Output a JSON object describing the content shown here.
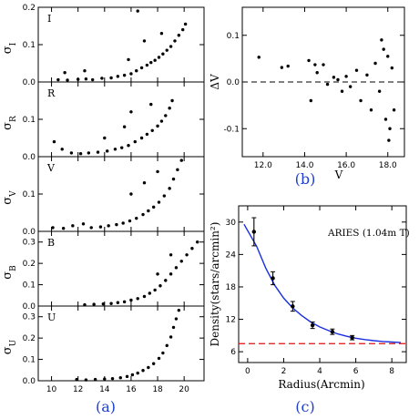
{
  "captions": {
    "a": "(a)",
    "b": "(b)",
    "c": "(c)"
  },
  "chart_data": [
    {
      "type": "scatter",
      "panel": "(a)",
      "xlabel": "",
      "xlim": [
        9,
        21.5
      ],
      "xticks": [
        10,
        12,
        14,
        16,
        18,
        20
      ],
      "series": [
        {
          "band": "I",
          "ylabel": "σ_I",
          "ylim": [
            0,
            0.2
          ],
          "yticks": [
            0,
            0.1,
            0.2
          ],
          "yticklabels": [
            "0.0",
            "0.1",
            "0.2"
          ],
          "points": [
            [
              10.5,
              0.006
            ],
            [
              11.2,
              0.005
            ],
            [
              12.0,
              0.007
            ],
            [
              12.6,
              0.008
            ],
            [
              13.1,
              0.006
            ],
            [
              13.8,
              0.01
            ],
            [
              14.5,
              0.011
            ],
            [
              15.0,
              0.015
            ],
            [
              15.5,
              0.018
            ],
            [
              16.0,
              0.022
            ],
            [
              16.4,
              0.03
            ],
            [
              16.8,
              0.038
            ],
            [
              17.2,
              0.045
            ],
            [
              17.5,
              0.052
            ],
            [
              17.8,
              0.058
            ],
            [
              18.1,
              0.066
            ],
            [
              18.4,
              0.075
            ],
            [
              18.7,
              0.085
            ],
            [
              19.0,
              0.095
            ],
            [
              19.3,
              0.11
            ],
            [
              19.6,
              0.125
            ],
            [
              19.9,
              0.14
            ],
            [
              20.1,
              0.155
            ],
            [
              15.8,
              0.06
            ],
            [
              16.5,
              0.19
            ],
            [
              17.0,
              0.11
            ],
            [
              18.3,
              0.13
            ],
            [
              12.5,
              0.03
            ],
            [
              11.0,
              0.025
            ]
          ]
        },
        {
          "band": "R",
          "ylabel": "σ_R",
          "ylim": [
            0,
            0.2
          ],
          "yticks": [
            0,
            0.1
          ],
          "yticklabels": [
            "0.0",
            "0.1"
          ],
          "points": [
            [
              10.2,
              0.04
            ],
            [
              10.8,
              0.02
            ],
            [
              11.5,
              0.01
            ],
            [
              12.2,
              0.008
            ],
            [
              12.8,
              0.01
            ],
            [
              13.5,
              0.012
            ],
            [
              14.2,
              0.015
            ],
            [
              14.8,
              0.02
            ],
            [
              15.3,
              0.024
            ],
            [
              15.8,
              0.03
            ],
            [
              16.3,
              0.04
            ],
            [
              16.8,
              0.05
            ],
            [
              17.2,
              0.06
            ],
            [
              17.6,
              0.07
            ],
            [
              18.0,
              0.082
            ],
            [
              18.3,
              0.095
            ],
            [
              18.6,
              0.11
            ],
            [
              18.9,
              0.13
            ],
            [
              19.1,
              0.15
            ],
            [
              15.5,
              0.08
            ],
            [
              16.0,
              0.12
            ],
            [
              17.5,
              0.14
            ],
            [
              14.0,
              0.05
            ]
          ]
        },
        {
          "band": "V",
          "ylabel": "σ_V",
          "ylim": [
            0,
            0.2
          ],
          "yticks": [
            0,
            0.1
          ],
          "yticklabels": [
            "0.0",
            "0.1"
          ],
          "points": [
            [
              10.1,
              0.01
            ],
            [
              10.9,
              0.008
            ],
            [
              11.6,
              0.015
            ],
            [
              12.4,
              0.02
            ],
            [
              13.0,
              0.01
            ],
            [
              13.7,
              0.012
            ],
            [
              14.3,
              0.015
            ],
            [
              14.9,
              0.018
            ],
            [
              15.4,
              0.022
            ],
            [
              15.9,
              0.028
            ],
            [
              16.4,
              0.035
            ],
            [
              16.9,
              0.045
            ],
            [
              17.3,
              0.055
            ],
            [
              17.7,
              0.065
            ],
            [
              18.1,
              0.078
            ],
            [
              18.5,
              0.095
            ],
            [
              18.9,
              0.115
            ],
            [
              19.2,
              0.14
            ],
            [
              19.5,
              0.165
            ],
            [
              19.8,
              0.19
            ],
            [
              16.0,
              0.1
            ],
            [
              17.0,
              0.13
            ],
            [
              18.0,
              0.16
            ]
          ]
        },
        {
          "band": "B",
          "ylabel": "σ_B",
          "ylim": [
            0,
            0.35
          ],
          "yticks": [
            0,
            0.1,
            0.2,
            0.3
          ],
          "yticklabels": [
            "0.0",
            "0.1",
            "0.2",
            "0.3"
          ],
          "points": [
            [
              12.5,
              0.006
            ],
            [
              13.2,
              0.008
            ],
            [
              13.9,
              0.01
            ],
            [
              14.5,
              0.012
            ],
            [
              15.0,
              0.016
            ],
            [
              15.5,
              0.02
            ],
            [
              16.0,
              0.028
            ],
            [
              16.5,
              0.035
            ],
            [
              17.0,
              0.045
            ],
            [
              17.4,
              0.06
            ],
            [
              17.8,
              0.075
            ],
            [
              18.2,
              0.095
            ],
            [
              18.6,
              0.12
            ],
            [
              19.0,
              0.15
            ],
            [
              19.4,
              0.18
            ],
            [
              19.8,
              0.21
            ],
            [
              20.2,
              0.24
            ],
            [
              20.6,
              0.27
            ],
            [
              21.0,
              0.3
            ],
            [
              18.0,
              0.15
            ],
            [
              19.0,
              0.24
            ]
          ]
        },
        {
          "band": "U",
          "ylabel": "σ_U",
          "ylim": [
            0,
            0.35
          ],
          "yticks": [
            0,
            0.1,
            0.2,
            0.3
          ],
          "yticklabels": [
            "0.0",
            "0.1",
            "0.2",
            "0.3"
          ],
          "points": [
            [
              11.9,
              0.006
            ],
            [
              12.6,
              0.004
            ],
            [
              13.3,
              0.006
            ],
            [
              14.0,
              0.008
            ],
            [
              14.6,
              0.01
            ],
            [
              15.2,
              0.014
            ],
            [
              15.7,
              0.02
            ],
            [
              16.1,
              0.028
            ],
            [
              16.5,
              0.036
            ],
            [
              16.9,
              0.048
            ],
            [
              17.3,
              0.062
            ],
            [
              17.7,
              0.08
            ],
            [
              18.1,
              0.105
            ],
            [
              18.4,
              0.13
            ],
            [
              18.7,
              0.165
            ],
            [
              19.0,
              0.205
            ],
            [
              19.2,
              0.25
            ],
            [
              19.4,
              0.29
            ],
            [
              19.6,
              0.33
            ]
          ]
        }
      ]
    },
    {
      "type": "scatter",
      "panel": "(b)",
      "xlabel": "V",
      "ylabel": "ΔV",
      "xlim": [
        11,
        18.8
      ],
      "ylim": [
        -0.16,
        0.16
      ],
      "xticks": [
        12.0,
        14.0,
        16.0,
        18.0
      ],
      "xticklabels": [
        "12.0",
        "14.0",
        "16.0",
        "18.0"
      ],
      "yticks": [
        -0.1,
        0,
        0.1
      ],
      "yticklabels": [
        "-0.1",
        "0.0",
        "0.1"
      ],
      "reference_line": 0,
      "points": [
        [
          11.8,
          0.053
        ],
        [
          12.9,
          0.031
        ],
        [
          13.2,
          0.034
        ],
        [
          14.2,
          0.046
        ],
        [
          14.5,
          0.037
        ],
        [
          14.6,
          0.02
        ],
        [
          14.9,
          0.037
        ],
        [
          15.1,
          -0.005
        ],
        [
          15.4,
          0.01
        ],
        [
          15.8,
          -0.02
        ],
        [
          16.0,
          0.012
        ],
        [
          16.2,
          -0.01
        ],
        [
          16.5,
          0.025
        ],
        [
          16.7,
          -0.04
        ],
        [
          17.0,
          0.015
        ],
        [
          17.2,
          -0.06
        ],
        [
          17.4,
          0.04
        ],
        [
          17.6,
          -0.02
        ],
        [
          17.8,
          0.07
        ],
        [
          17.9,
          -0.08
        ],
        [
          18.0,
          0.055
        ],
        [
          18.1,
          -0.1
        ],
        [
          18.2,
          0.03
        ],
        [
          18.3,
          -0.06
        ],
        [
          17.7,
          0.09
        ],
        [
          18.05,
          -0.125
        ],
        [
          14.3,
          -0.04
        ],
        [
          15.6,
          0.005
        ]
      ]
    },
    {
      "type": "line",
      "panel": "(c)",
      "annotation": "ARIES (1.04m T)",
      "xlabel": "Radius(Arcmin)",
      "ylabel": "Density(stars/arcmin²)",
      "xlim": [
        -0.5,
        8.8
      ],
      "ylim": [
        4,
        33
      ],
      "xticks": [
        0,
        2,
        4,
        6,
        8
      ],
      "yticks": [
        6,
        12,
        18,
        24,
        30
      ],
      "observed": {
        "x": [
          0.35,
          1.4,
          2.5,
          3.6,
          4.7,
          5.8
        ],
        "y": [
          28.2,
          19.6,
          14.4,
          10.9,
          9.7,
          8.6
        ],
        "err": [
          2.6,
          1.2,
          0.9,
          0.6,
          0.5,
          0.4
        ]
      },
      "fit_curve": {
        "x": [
          -0.2,
          0.5,
          1.0,
          1.5,
          2.0,
          2.5,
          3.0,
          3.5,
          4.0,
          4.5,
          5.0,
          5.5,
          6.0,
          6.5,
          7.0,
          7.5,
          8.0,
          8.5
        ],
        "y": [
          29.6,
          25.5,
          21.5,
          18.3,
          15.9,
          14.1,
          12.7,
          11.5,
          10.6,
          9.9,
          9.3,
          8.85,
          8.5,
          8.25,
          8.05,
          7.9,
          7.8,
          7.7
        ]
      },
      "background_level": 7.5,
      "colors": {
        "fit": "#1a2fe0",
        "background": "#e01010",
        "points": "#000000"
      }
    }
  ]
}
